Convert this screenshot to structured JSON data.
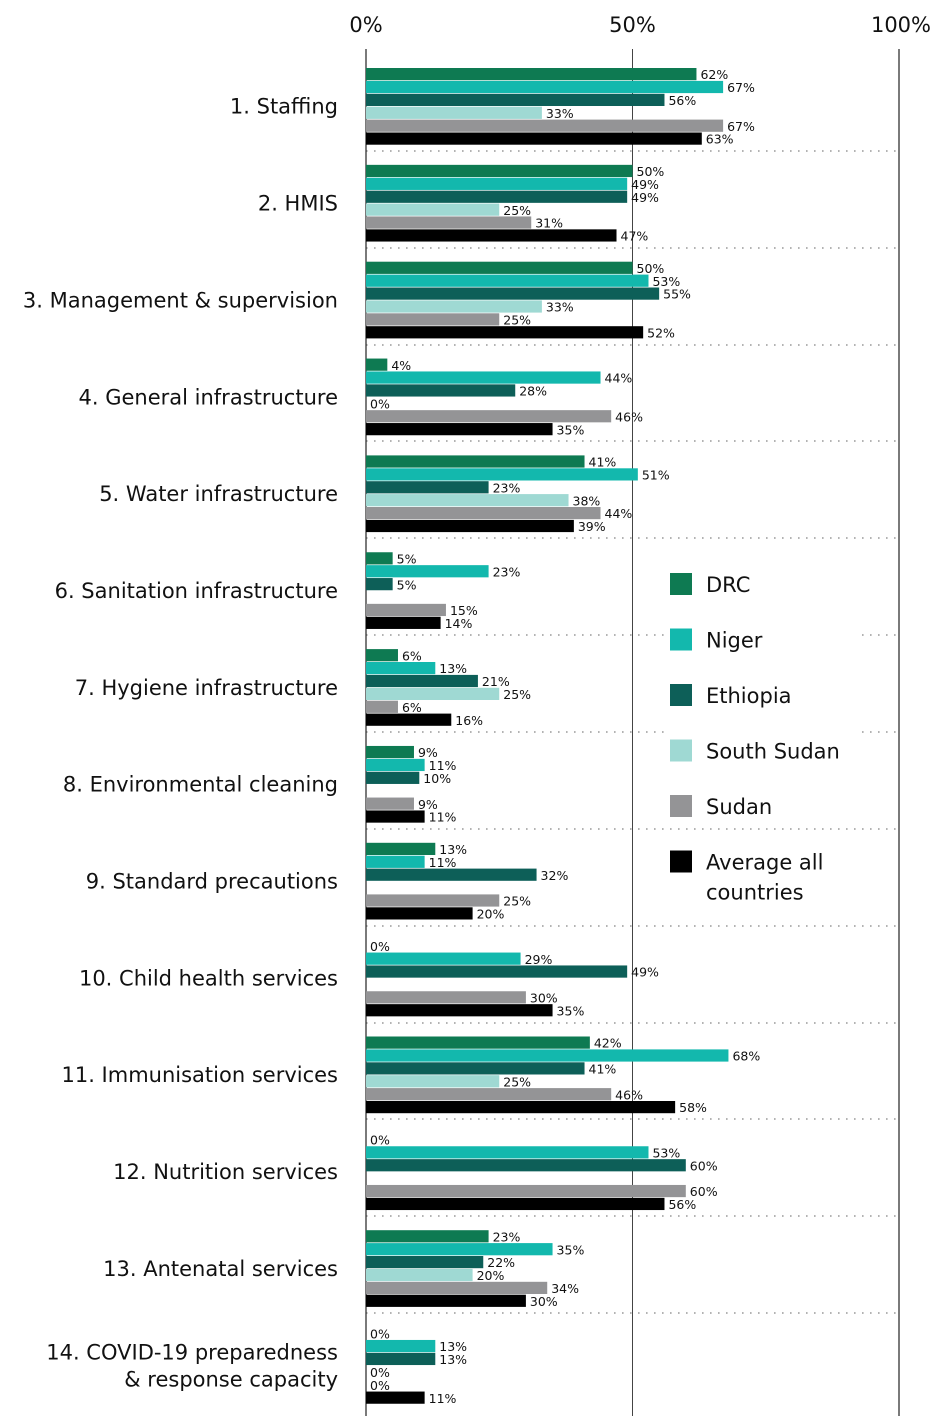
{
  "chart_data": {
    "type": "bar",
    "orientation": "horizontal",
    "xlim": [
      0,
      100
    ],
    "x_ticks": [
      "0%",
      "50%",
      "100%"
    ],
    "grid": "dotted separators between categories",
    "legend_position": "right",
    "categories": [
      [
        "1. Staffing"
      ],
      [
        "2. HMIS"
      ],
      [
        "3. Management & supervision"
      ],
      [
        "4. General infrastructure"
      ],
      [
        "5. Water infrastructure"
      ],
      [
        "6. Sanitation infrastructure"
      ],
      [
        "7. Hygiene infrastructure"
      ],
      [
        "8. Environmental cleaning"
      ],
      [
        "9. Standard precautions"
      ],
      [
        "10. Child health services"
      ],
      [
        "11. Immunisation services"
      ],
      [
        "12. Nutrition services"
      ],
      [
        "13. Antenatal services"
      ],
      [
        "14. COVID-19 preparedness",
        "& response capacity"
      ]
    ],
    "series": [
      {
        "name": "DRC",
        "legend_lines": [
          "DRC"
        ],
        "color": "#0e7a52",
        "values": [
          62,
          50,
          50,
          4,
          41,
          5,
          6,
          9,
          13,
          0,
          42,
          0,
          23,
          0
        ]
      },
      {
        "name": "Niger",
        "legend_lines": [
          "Niger"
        ],
        "color": "#13b8ad",
        "values": [
          67,
          49,
          53,
          44,
          51,
          23,
          13,
          11,
          11,
          29,
          68,
          53,
          35,
          13
        ]
      },
      {
        "name": "Ethiopia",
        "legend_lines": [
          "Ethiopia"
        ],
        "color": "#0d5f58",
        "values": [
          56,
          49,
          55,
          28,
          23,
          5,
          21,
          10,
          32,
          49,
          41,
          60,
          22,
          13
        ]
      },
      {
        "name": "South Sudan",
        "legend_lines": [
          "South Sudan"
        ],
        "color": "#9fd9d3",
        "values": [
          33,
          25,
          33,
          0,
          38,
          null,
          25,
          null,
          null,
          null,
          25,
          null,
          20,
          0
        ]
      },
      {
        "name": "Sudan",
        "legend_lines": [
          "Sudan"
        ],
        "color": "#949496",
        "values": [
          67,
          31,
          25,
          46,
          44,
          15,
          6,
          9,
          25,
          30,
          46,
          60,
          34,
          0
        ]
      },
      {
        "name": "Average all countries",
        "legend_lines": [
          "Average all",
          "countries"
        ],
        "color": "#000000",
        "values": [
          63,
          47,
          52,
          35,
          39,
          14,
          16,
          11,
          20,
          35,
          58,
          56,
          30,
          11
        ]
      }
    ]
  }
}
